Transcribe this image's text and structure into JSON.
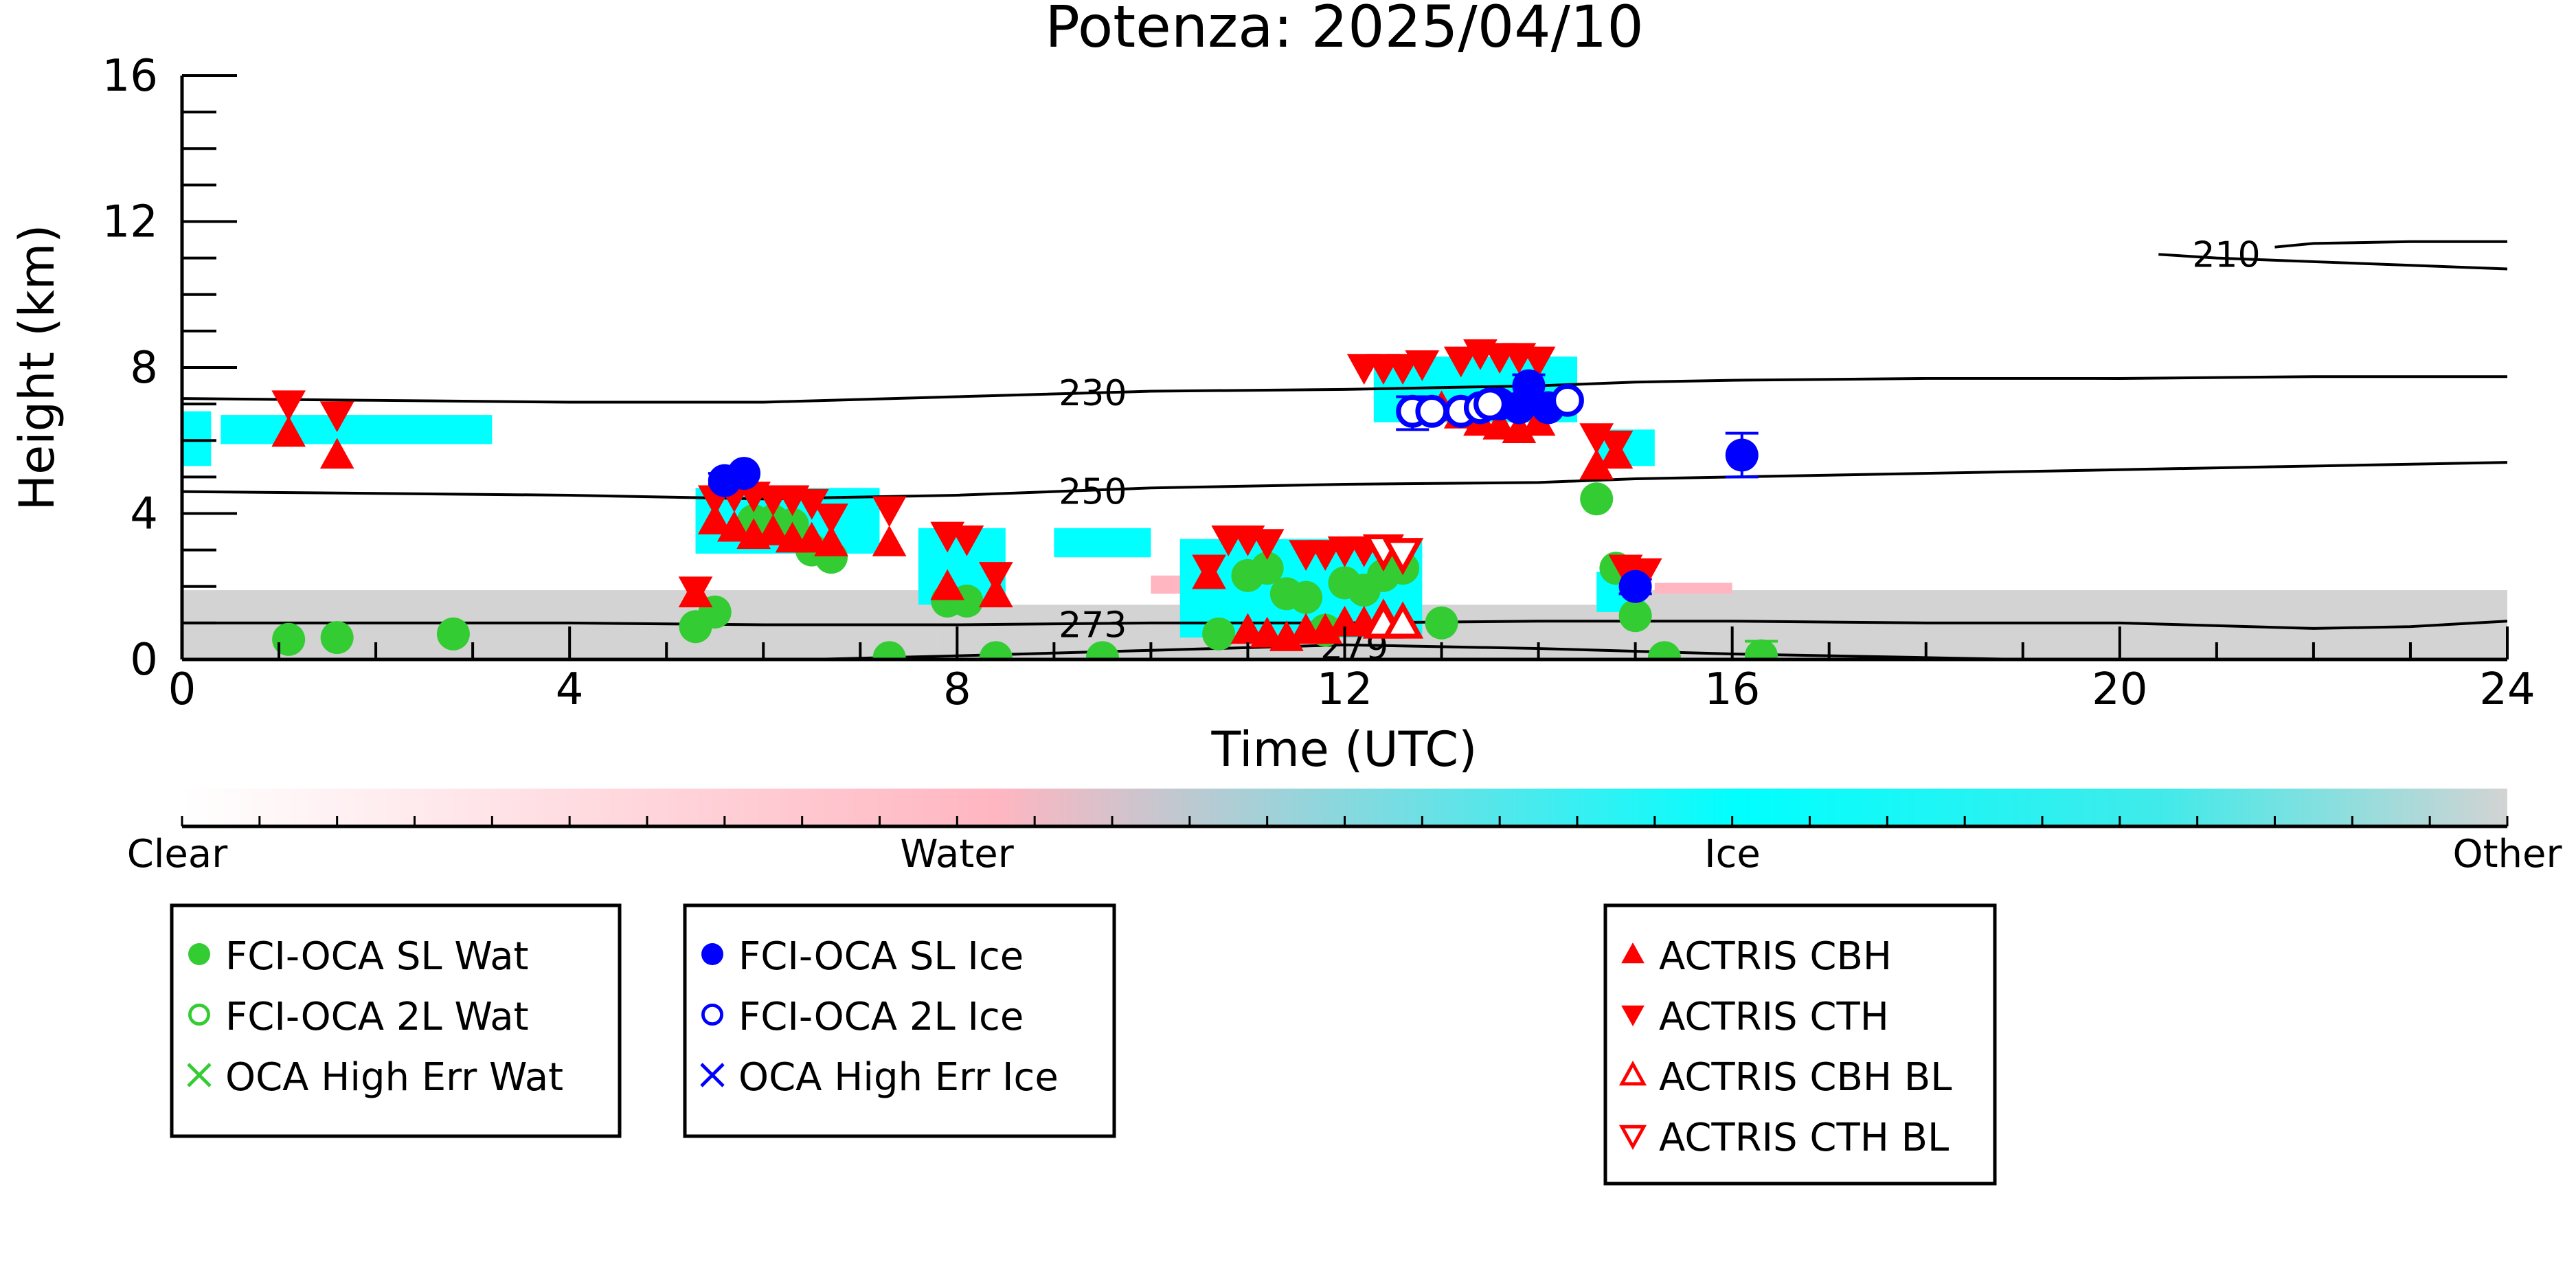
{
  "chart_data": {
    "type": "scatter",
    "title": "Potenza: 2025/04/10",
    "xlabel": "Time (UTC)",
    "ylabel": "Height (km)",
    "xlim": [
      0,
      24
    ],
    "ylim": [
      0,
      16
    ],
    "x_ticks": [
      "0",
      "4",
      "8",
      "12",
      "16",
      "20",
      "24"
    ],
    "y_ticks": [
      "0",
      "4",
      "8",
      "12",
      "16"
    ],
    "grid": false,
    "background_classification": {
      "colorbar_labels": [
        "Clear",
        "Water",
        "Ice",
        "Other"
      ],
      "colors": {
        "clear": "#ffffff",
        "water": "#ffb6c1",
        "ice": "#00ffff",
        "other": "#d3d3d3"
      },
      "ice_regions": [
        {
          "x0": 0.0,
          "x1": 0.3,
          "y0": 5.3,
          "y1": 6.8
        },
        {
          "x0": 0.4,
          "x1": 3.2,
          "y0": 5.9,
          "y1": 6.7
        },
        {
          "x0": 5.3,
          "x1": 7.2,
          "y0": 2.9,
          "y1": 4.7
        },
        {
          "x0": 7.6,
          "x1": 8.5,
          "y0": 1.5,
          "y1": 3.6
        },
        {
          "x0": 9.0,
          "x1": 10.0,
          "y0": 2.8,
          "y1": 3.6
        },
        {
          "x0": 10.3,
          "x1": 12.8,
          "y0": 0.6,
          "y1": 3.3
        },
        {
          "x0": 12.3,
          "x1": 14.4,
          "y0": 6.5,
          "y1": 8.3
        },
        {
          "x0": 14.6,
          "x1": 15.2,
          "y0": 5.3,
          "y1": 6.3
        },
        {
          "x0": 14.6,
          "x1": 15.1,
          "y0": 1.3,
          "y1": 2.4
        }
      ],
      "other_regions": [
        {
          "x0": 0.0,
          "x1": 7.8,
          "y0": 0.0,
          "y1": 1.9
        },
        {
          "x0": 7.8,
          "x1": 15.0,
          "y0": 0.0,
          "y1": 1.5
        },
        {
          "x0": 15.0,
          "x1": 24.0,
          "y0": 0.0,
          "y1": 1.9
        }
      ],
      "water_regions": [
        {
          "x0": 10.0,
          "x1": 10.4,
          "y0": 1.8,
          "y1": 2.3
        },
        {
          "x0": 15.2,
          "x1": 16.0,
          "y0": 1.8,
          "y1": 2.1
        }
      ]
    },
    "contours": [
      {
        "label": "210",
        "x": [
          20.4,
          21.0,
          22.0,
          24.0
        ],
        "y": [
          11.1,
          11.0,
          10.9,
          10.7
        ],
        "label_at": [
          21.1,
          11.1
        ]
      },
      {
        "label": "210",
        "x": [
          21.6,
          22.0,
          23.0,
          24.0
        ],
        "y": [
          11.3,
          11.4,
          11.45,
          11.45
        ],
        "label_at": null
      },
      {
        "label": "230",
        "x": [
          0,
          2,
          4,
          6,
          8,
          10,
          12,
          14,
          15,
          16,
          18,
          20,
          22,
          24
        ],
        "y": [
          7.15,
          7.1,
          7.05,
          7.05,
          7.2,
          7.35,
          7.4,
          7.5,
          7.6,
          7.65,
          7.7,
          7.7,
          7.75,
          7.75
        ],
        "label_at": [
          9.4,
          7.3
        ]
      },
      {
        "label": "250",
        "x": [
          0,
          2,
          4,
          6,
          8,
          10,
          12,
          14,
          15,
          16,
          18,
          20,
          22,
          24
        ],
        "y": [
          4.6,
          4.55,
          4.5,
          4.4,
          4.5,
          4.7,
          4.8,
          4.85,
          4.95,
          5.0,
          5.1,
          5.2,
          5.3,
          5.4
        ],
        "label_at": [
          9.4,
          4.6
        ]
      },
      {
        "label": "273",
        "x": [
          0,
          2,
          4,
          6,
          8,
          10,
          12,
          14,
          16,
          18,
          20,
          22,
          23,
          24
        ],
        "y": [
          1.0,
          1.0,
          1.0,
          0.95,
          0.95,
          1.0,
          1.0,
          1.05,
          1.05,
          1.0,
          1.0,
          0.85,
          0.9,
          1.05
        ],
        "label_at": [
          9.4,
          0.95
        ]
      },
      {
        "label": "279",
        "x": [
          6.5,
          8,
          10,
          12,
          14,
          16,
          18,
          19
        ],
        "y": [
          0.0,
          0.1,
          0.25,
          0.4,
          0.3,
          0.15,
          0.05,
          0.0
        ],
        "label_at": [
          12.1,
          0.35
        ]
      }
    ],
    "series": [
      {
        "name": "FCI-OCA SL Wat",
        "marker": "filled-circle",
        "color": "#33cc33",
        "points": [
          [
            1.1,
            0.55
          ],
          [
            1.6,
            0.6
          ],
          [
            2.8,
            0.7
          ],
          [
            5.3,
            0.9
          ],
          [
            5.5,
            1.3
          ],
          [
            5.9,
            3.8
          ],
          [
            6.1,
            3.8
          ],
          [
            6.3,
            3.7
          ],
          [
            6.5,
            3.0
          ],
          [
            6.7,
            2.8
          ],
          [
            7.3,
            0.05
          ],
          [
            7.9,
            1.6
          ],
          [
            8.1,
            1.6
          ],
          [
            8.4,
            0.05
          ],
          [
            9.5,
            0.05
          ],
          [
            10.7,
            0.7
          ],
          [
            11.0,
            2.3
          ],
          [
            11.2,
            2.5
          ],
          [
            11.4,
            1.8
          ],
          [
            11.6,
            1.7
          ],
          [
            11.8,
            0.8
          ],
          [
            12.0,
            2.1
          ],
          [
            12.2,
            1.9
          ],
          [
            12.4,
            2.3
          ],
          [
            12.6,
            2.5
          ],
          [
            13.0,
            1.0
          ],
          [
            14.6,
            4.4
          ],
          [
            14.8,
            2.5
          ],
          [
            15.0,
            1.2
          ],
          [
            15.3,
            0.05
          ],
          [
            16.3,
            0.1
          ]
        ]
      },
      {
        "name": "FCI-OCA 2L Wat",
        "marker": "open-circle",
        "color": "#33cc33",
        "points": []
      },
      {
        "name": "OCA High Err Wat",
        "marker": "x",
        "color": "#33cc33",
        "points": []
      },
      {
        "name": "FCI-OCA SL Ice",
        "marker": "filled-circle",
        "color": "#0000ff",
        "points": [
          [
            5.6,
            4.9
          ],
          [
            5.8,
            5.1
          ],
          [
            13.6,
            7.0
          ],
          [
            13.8,
            6.9
          ],
          [
            13.9,
            7.5
          ],
          [
            14.1,
            6.9
          ],
          [
            15.0,
            2.0
          ],
          [
            16.1,
            5.6
          ]
        ]
      },
      {
        "name": "FCI-OCA 2L Ice",
        "marker": "open-circle",
        "color": "#0000ff",
        "points": [
          [
            12.7,
            6.8
          ],
          [
            12.9,
            6.8
          ],
          [
            13.2,
            6.8
          ],
          [
            13.4,
            6.9
          ],
          [
            13.5,
            7.0
          ],
          [
            14.3,
            7.1
          ]
        ]
      },
      {
        "name": "OCA High Err Ice",
        "marker": "x",
        "color": "#0000ff",
        "points": []
      },
      {
        "name": "ACTRIS CBH",
        "marker": "filled-triangle-up",
        "color": "#ff0000",
        "points": [
          [
            1.1,
            6.2
          ],
          [
            1.6,
            5.6
          ],
          [
            5.3,
            1.8
          ],
          [
            5.5,
            3.8
          ],
          [
            5.7,
            3.6
          ],
          [
            5.9,
            3.4
          ],
          [
            6.1,
            3.5
          ],
          [
            6.3,
            3.3
          ],
          [
            6.5,
            3.3
          ],
          [
            6.7,
            3.2
          ],
          [
            7.3,
            3.2
          ],
          [
            7.9,
            2.0
          ],
          [
            8.4,
            1.8
          ],
          [
            10.6,
            2.3
          ],
          [
            11.0,
            0.8
          ],
          [
            11.2,
            0.7
          ],
          [
            11.4,
            0.6
          ],
          [
            11.6,
            0.8
          ],
          [
            11.8,
            0.8
          ],
          [
            12.0,
            1.0
          ],
          [
            12.2,
            1.0
          ],
          [
            12.4,
            1.2
          ],
          [
            13.0,
            6.9
          ],
          [
            13.2,
            6.7
          ],
          [
            13.4,
            6.5
          ],
          [
            13.6,
            6.4
          ],
          [
            13.8,
            6.3
          ],
          [
            14.0,
            6.5
          ],
          [
            14.6,
            5.3
          ],
          [
            14.8,
            5.6
          ]
        ]
      },
      {
        "name": "ACTRIS CTH",
        "marker": "filled-triangle-down",
        "color": "#ff0000",
        "points": [
          [
            1.1,
            7.0
          ],
          [
            1.6,
            6.7
          ],
          [
            5.3,
            1.9
          ],
          [
            5.5,
            4.4
          ],
          [
            5.7,
            4.5
          ],
          [
            5.9,
            4.5
          ],
          [
            6.1,
            4.4
          ],
          [
            6.3,
            4.4
          ],
          [
            6.5,
            4.3
          ],
          [
            6.7,
            3.9
          ],
          [
            7.3,
            4.1
          ],
          [
            7.9,
            3.4
          ],
          [
            8.1,
            3.3
          ],
          [
            8.4,
            2.3
          ],
          [
            10.6,
            2.5
          ],
          [
            10.8,
            3.3
          ],
          [
            11.0,
            3.3
          ],
          [
            11.2,
            3.2
          ],
          [
            11.6,
            2.9
          ],
          [
            11.8,
            2.9
          ],
          [
            12.0,
            3.0
          ],
          [
            12.2,
            3.0
          ],
          [
            12.4,
            2.9
          ],
          [
            12.2,
            8.0
          ],
          [
            12.4,
            8.0
          ],
          [
            12.6,
            8.0
          ],
          [
            12.8,
            8.1
          ],
          [
            13.2,
            8.2
          ],
          [
            13.4,
            8.4
          ],
          [
            13.6,
            8.3
          ],
          [
            13.8,
            8.3
          ],
          [
            14.0,
            8.2
          ],
          [
            14.6,
            6.1
          ],
          [
            14.8,
            5.9
          ],
          [
            14.9,
            2.5
          ],
          [
            15.1,
            2.4
          ]
        ]
      },
      {
        "name": "ACTRIS CBH BL",
        "marker": "open-triangle-up",
        "color": "#ff0000",
        "points": [
          [
            12.4,
            1.0
          ],
          [
            12.6,
            1.0
          ]
        ]
      },
      {
        "name": "ACTRIS CTH BL",
        "marker": "open-triangle-down",
        "color": "#ff0000",
        "points": [
          [
            12.4,
            3.0
          ],
          [
            12.6,
            2.9
          ]
        ]
      }
    ],
    "error_bars": [
      {
        "color": "#0000ff",
        "x": 5.6,
        "y": 4.9,
        "lo": 4.8,
        "hi": 5.1
      },
      {
        "color": "#0000ff",
        "x": 12.7,
        "y": 6.8,
        "lo": 6.3,
        "hi": 7.2
      },
      {
        "color": "#0000ff",
        "x": 13.9,
        "y": 7.5,
        "lo": 7.2,
        "hi": 7.8
      },
      {
        "color": "#0000ff",
        "x": 15.0,
        "y": 2.0,
        "lo": 1.8,
        "hi": 2.2
      },
      {
        "color": "#0000ff",
        "x": 16.1,
        "y": 5.6,
        "lo": 5.0,
        "hi": 6.2
      },
      {
        "color": "#33cc33",
        "x": 16.3,
        "y": 0.1,
        "lo": 0.0,
        "hi": 0.5
      }
    ],
    "legend_groups": [
      [
        "FCI-OCA SL Wat",
        "FCI-OCA 2L Wat",
        "OCA High Err Wat"
      ],
      [
        "FCI-OCA SL Ice",
        "FCI-OCA 2L Ice",
        "OCA High Err Ice"
      ],
      [
        "ACTRIS CBH",
        "ACTRIS CTH",
        "ACTRIS CBH BL",
        "ACTRIS CTH BL"
      ]
    ]
  }
}
